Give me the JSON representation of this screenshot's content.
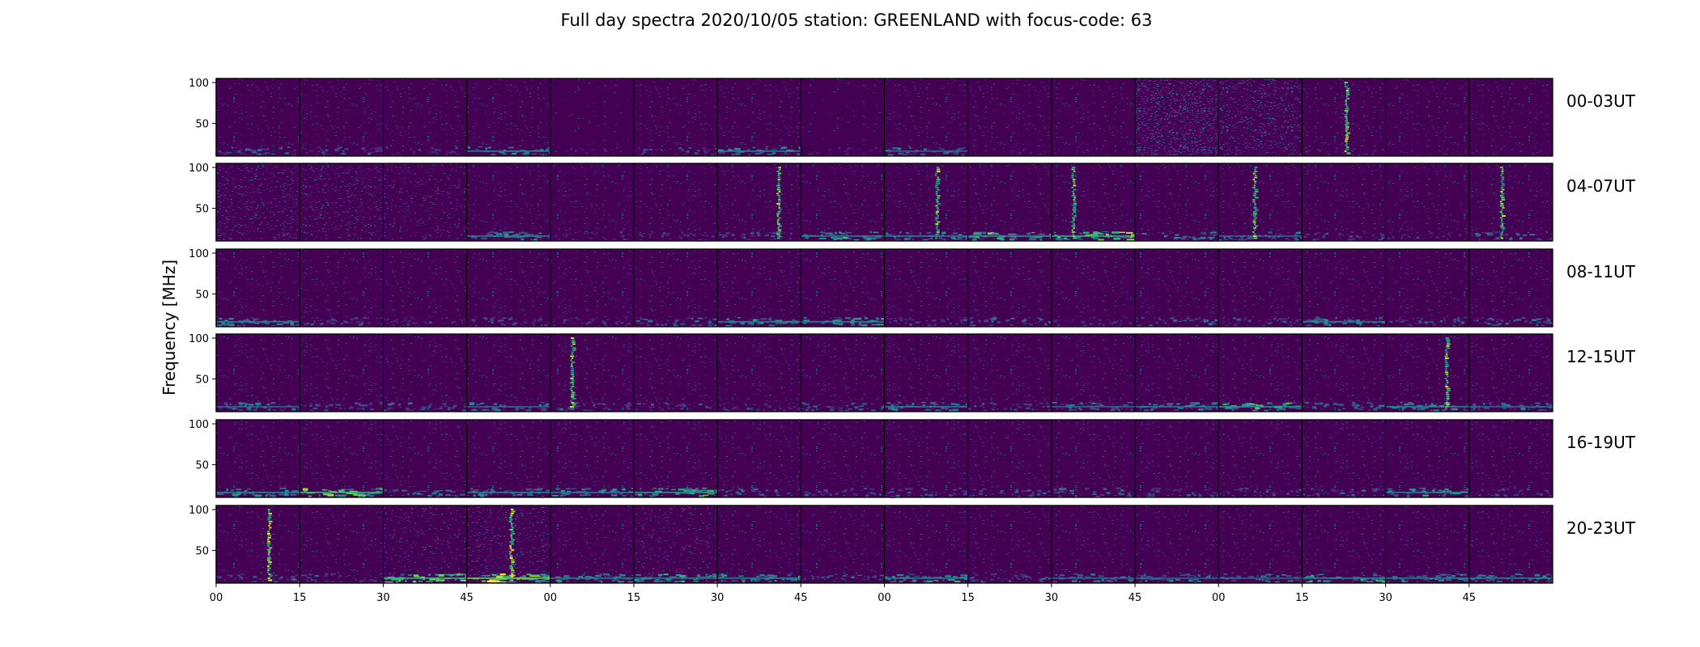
{
  "chart_data": {
    "type": "heatmap",
    "title": "Full day spectra 2020/10/05 station: GREENLAND with focus-code: 63",
    "ylabel": "Frequency [MHz]",
    "ylim": [
      10,
      105
    ],
    "yticks": [
      100,
      50
    ],
    "xticks": [
      "00",
      "15",
      "30",
      "45",
      "00",
      "15",
      "30",
      "45",
      "00",
      "15",
      "30",
      "45",
      "00",
      "15",
      "30",
      "45"
    ],
    "panels_per_row": 16,
    "colormap": [
      "#440154",
      "#482878",
      "#3e4a89",
      "#31688e",
      "#26828e",
      "#1f9e89",
      "#35b779",
      "#6ece58",
      "#b5de2b",
      "#fde725"
    ],
    "rows": [
      {
        "label": "00-03UT",
        "noise": [
          0.05,
          0.05,
          0.05,
          0.05,
          0.04,
          0.05,
          0.05,
          0.04,
          0.05,
          0.05,
          0.05,
          0.32,
          0.28,
          0.08,
          0.05,
          0.06
        ],
        "band": [
          0.35,
          0.3,
          0.2,
          0.5,
          0.15,
          0.3,
          0.5,
          0.15,
          0.45,
          0.1,
          0.1,
          0.15,
          0.1,
          0.15,
          0.1,
          0.1
        ],
        "burst": [
          -1,
          -1,
          -1,
          -1,
          -1,
          -1,
          -1,
          -1,
          -1,
          -1,
          -1,
          -1,
          -1,
          0.52,
          -1,
          -1
        ]
      },
      {
        "label": "04-07UT",
        "noise": [
          0.14,
          0.14,
          0.12,
          0.05,
          0.05,
          0.06,
          0.05,
          0.05,
          0.05,
          0.05,
          0.05,
          0.05,
          0.05,
          0.05,
          0.05,
          0.05
        ],
        "band": [
          0.1,
          0.1,
          0.1,
          0.55,
          0.2,
          0.2,
          0.3,
          0.6,
          0.5,
          0.7,
          0.75,
          0.4,
          0.45,
          0.3,
          0.2,
          0.4
        ],
        "burst": [
          -1,
          -1,
          -1,
          -1,
          -1,
          -1,
          0.72,
          -1,
          0.62,
          -1,
          0.25,
          -1,
          0.42,
          -1,
          -1,
          0.38
        ]
      },
      {
        "label": "08-11UT",
        "noise": [
          0.05,
          0.05,
          0.05,
          0.05,
          0.05,
          0.05,
          0.05,
          0.05,
          0.05,
          0.05,
          0.05,
          0.05,
          0.05,
          0.05,
          0.05,
          0.05
        ],
        "band": [
          0.5,
          0.3,
          0.2,
          0.3,
          0.2,
          0.4,
          0.55,
          0.6,
          0.3,
          0.35,
          0.2,
          0.35,
          0.3,
          0.5,
          0.3,
          0.4
        ],
        "burst": [
          -1,
          -1,
          -1,
          -1,
          -1,
          -1,
          -1,
          -1,
          -1,
          -1,
          -1,
          -1,
          -1,
          -1,
          -1,
          -1
        ]
      },
      {
        "label": "12-15UT",
        "noise": [
          0.06,
          0.06,
          0.06,
          0.06,
          0.06,
          0.06,
          0.06,
          0.06,
          0.06,
          0.06,
          0.06,
          0.06,
          0.06,
          0.06,
          0.06,
          0.06
        ],
        "band": [
          0.45,
          0.35,
          0.35,
          0.45,
          0.35,
          0.3,
          0.25,
          0.35,
          0.55,
          0.3,
          0.45,
          0.5,
          0.7,
          0.4,
          0.55,
          0.45
        ],
        "burst": [
          -1,
          -1,
          -1,
          -1,
          0.25,
          -1,
          -1,
          -1,
          -1,
          -1,
          -1,
          -1,
          -1,
          -1,
          0.72,
          -1
        ]
      },
      {
        "label": "16-19UT",
        "noise": [
          0.06,
          0.06,
          0.06,
          0.06,
          0.06,
          0.06,
          0.06,
          0.06,
          0.06,
          0.06,
          0.06,
          0.06,
          0.06,
          0.06,
          0.06,
          0.06
        ],
        "band": [
          0.55,
          0.75,
          0.4,
          0.5,
          0.55,
          0.65,
          0.35,
          0.3,
          0.35,
          0.3,
          0.4,
          0.3,
          0.25,
          0.3,
          0.55,
          0.25
        ],
        "burst": [
          -1,
          -1,
          -1,
          -1,
          -1,
          -1,
          -1,
          -1,
          -1,
          -1,
          -1,
          -1,
          -1,
          -1,
          -1,
          -1
        ]
      },
      {
        "label": "20-23UT",
        "noise": [
          0.07,
          0.06,
          0.1,
          0.14,
          0.07,
          0.1,
          0.06,
          0.05,
          0.06,
          0.05,
          0.06,
          0.06,
          0.06,
          0.07,
          0.06,
          0.06
        ],
        "band": [
          0.3,
          0.3,
          0.75,
          0.95,
          0.5,
          0.6,
          0.55,
          0.3,
          0.55,
          0.35,
          0.45,
          0.45,
          0.45,
          0.6,
          0.5,
          0.5
        ],
        "burst": [
          -1,
          -1,
          -1,
          -1,
          -1,
          -1,
          -1,
          -1,
          -1,
          -1,
          -1,
          -1,
          -1,
          -1,
          -1,
          -1
        ]
      }
    ],
    "extra_bursts": [
      {
        "row": 5,
        "panel": 0,
        "pos": 0.62
      },
      {
        "row": 5,
        "panel": 3,
        "pos": 0.52
      }
    ]
  }
}
